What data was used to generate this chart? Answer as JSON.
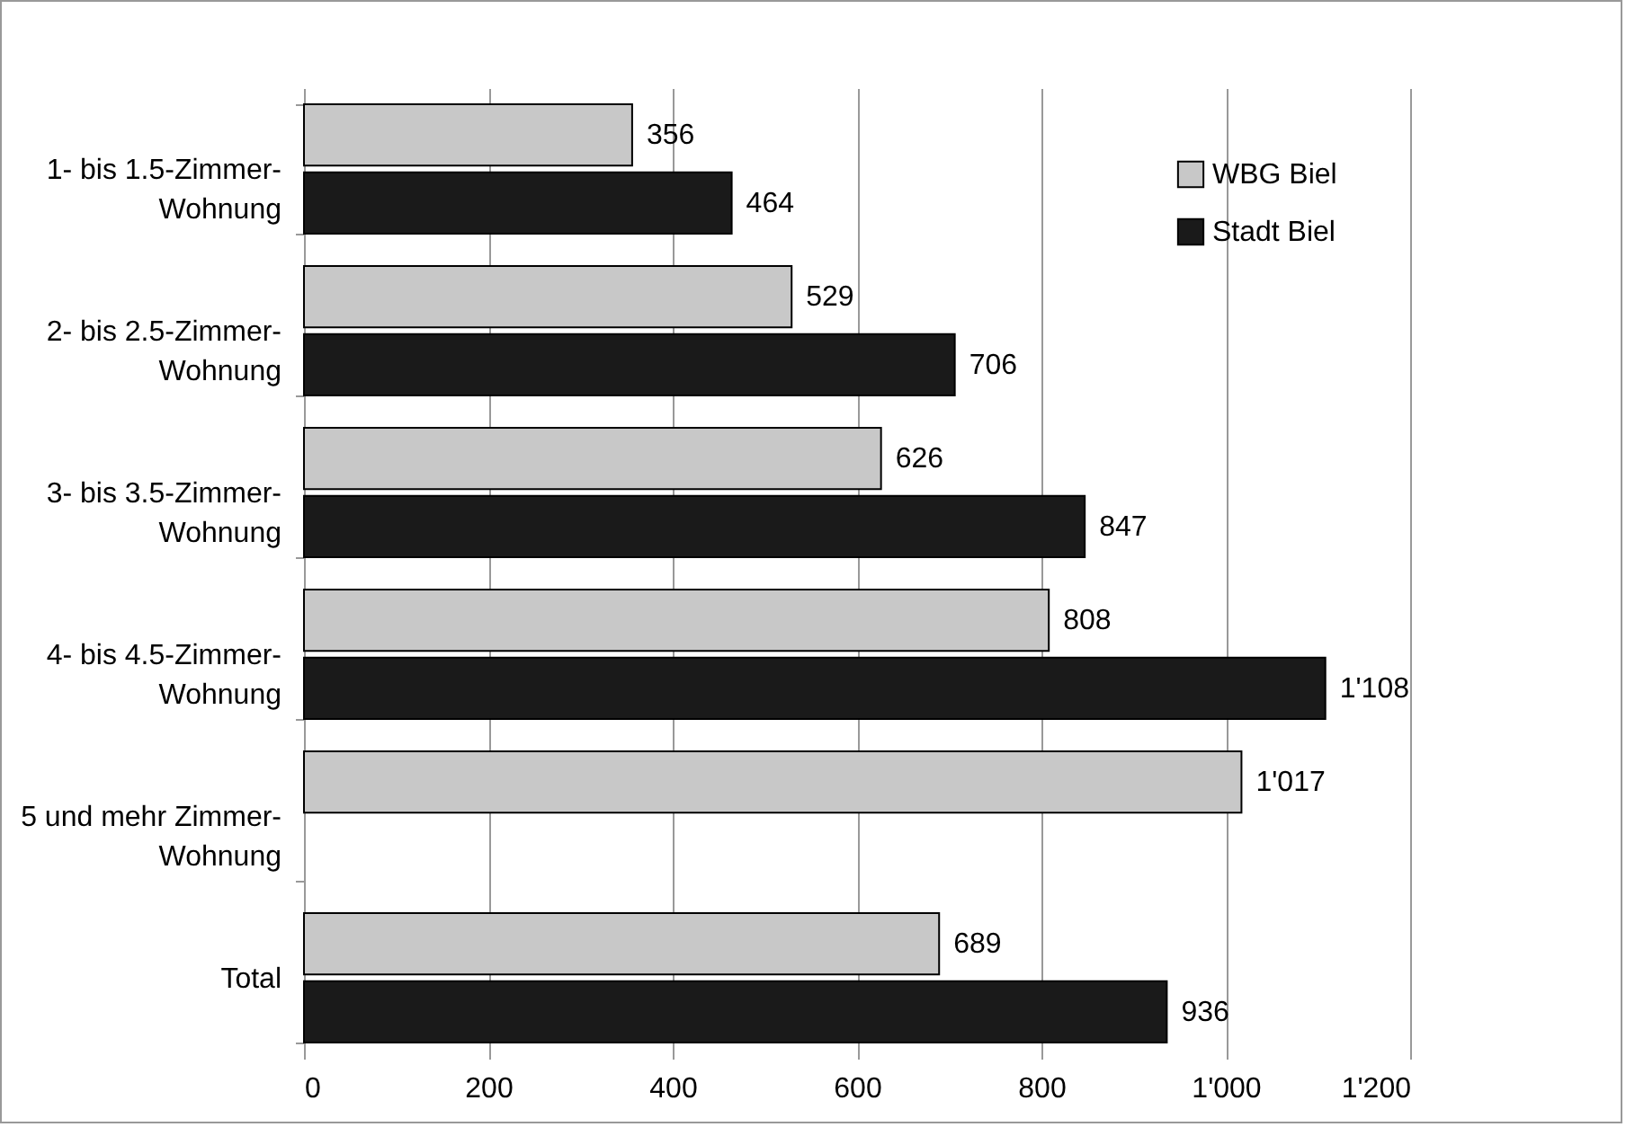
{
  "chart_data": {
    "type": "bar",
    "orientation": "horizontal",
    "categories": [
      "1- bis 1.5-Zimmer-Wohnung",
      "2- bis 2.5-Zimmer-Wohnung",
      "3- bis 3.5-Zimmer-Wohnung",
      "4- bis 4.5-Zimmer-Wohnung",
      "5 und mehr Zimmer-Wohnung",
      "Total"
    ],
    "series": [
      {
        "name": "WBG Biel",
        "color": "#c8c8c8",
        "values": [
          356,
          529,
          626,
          808,
          1017,
          689
        ],
        "value_labels": [
          "356",
          "529",
          "626",
          "808",
          "1'017",
          "689"
        ]
      },
      {
        "name": "Stadt Biel",
        "color": "#1a1a1a",
        "values": [
          464,
          706,
          847,
          1108,
          null,
          936
        ],
        "value_labels": [
          "464",
          "706",
          "847",
          "1'108",
          null,
          "936"
        ]
      }
    ],
    "xlim": [
      0,
      1200
    ],
    "xticks": [
      0,
      200,
      400,
      600,
      800,
      {
        "value": 1000,
        "label": "1'000"
      },
      {
        "value": 1200,
        "label": "1'200"
      }
    ],
    "grid": "x",
    "legend": "top right"
  }
}
